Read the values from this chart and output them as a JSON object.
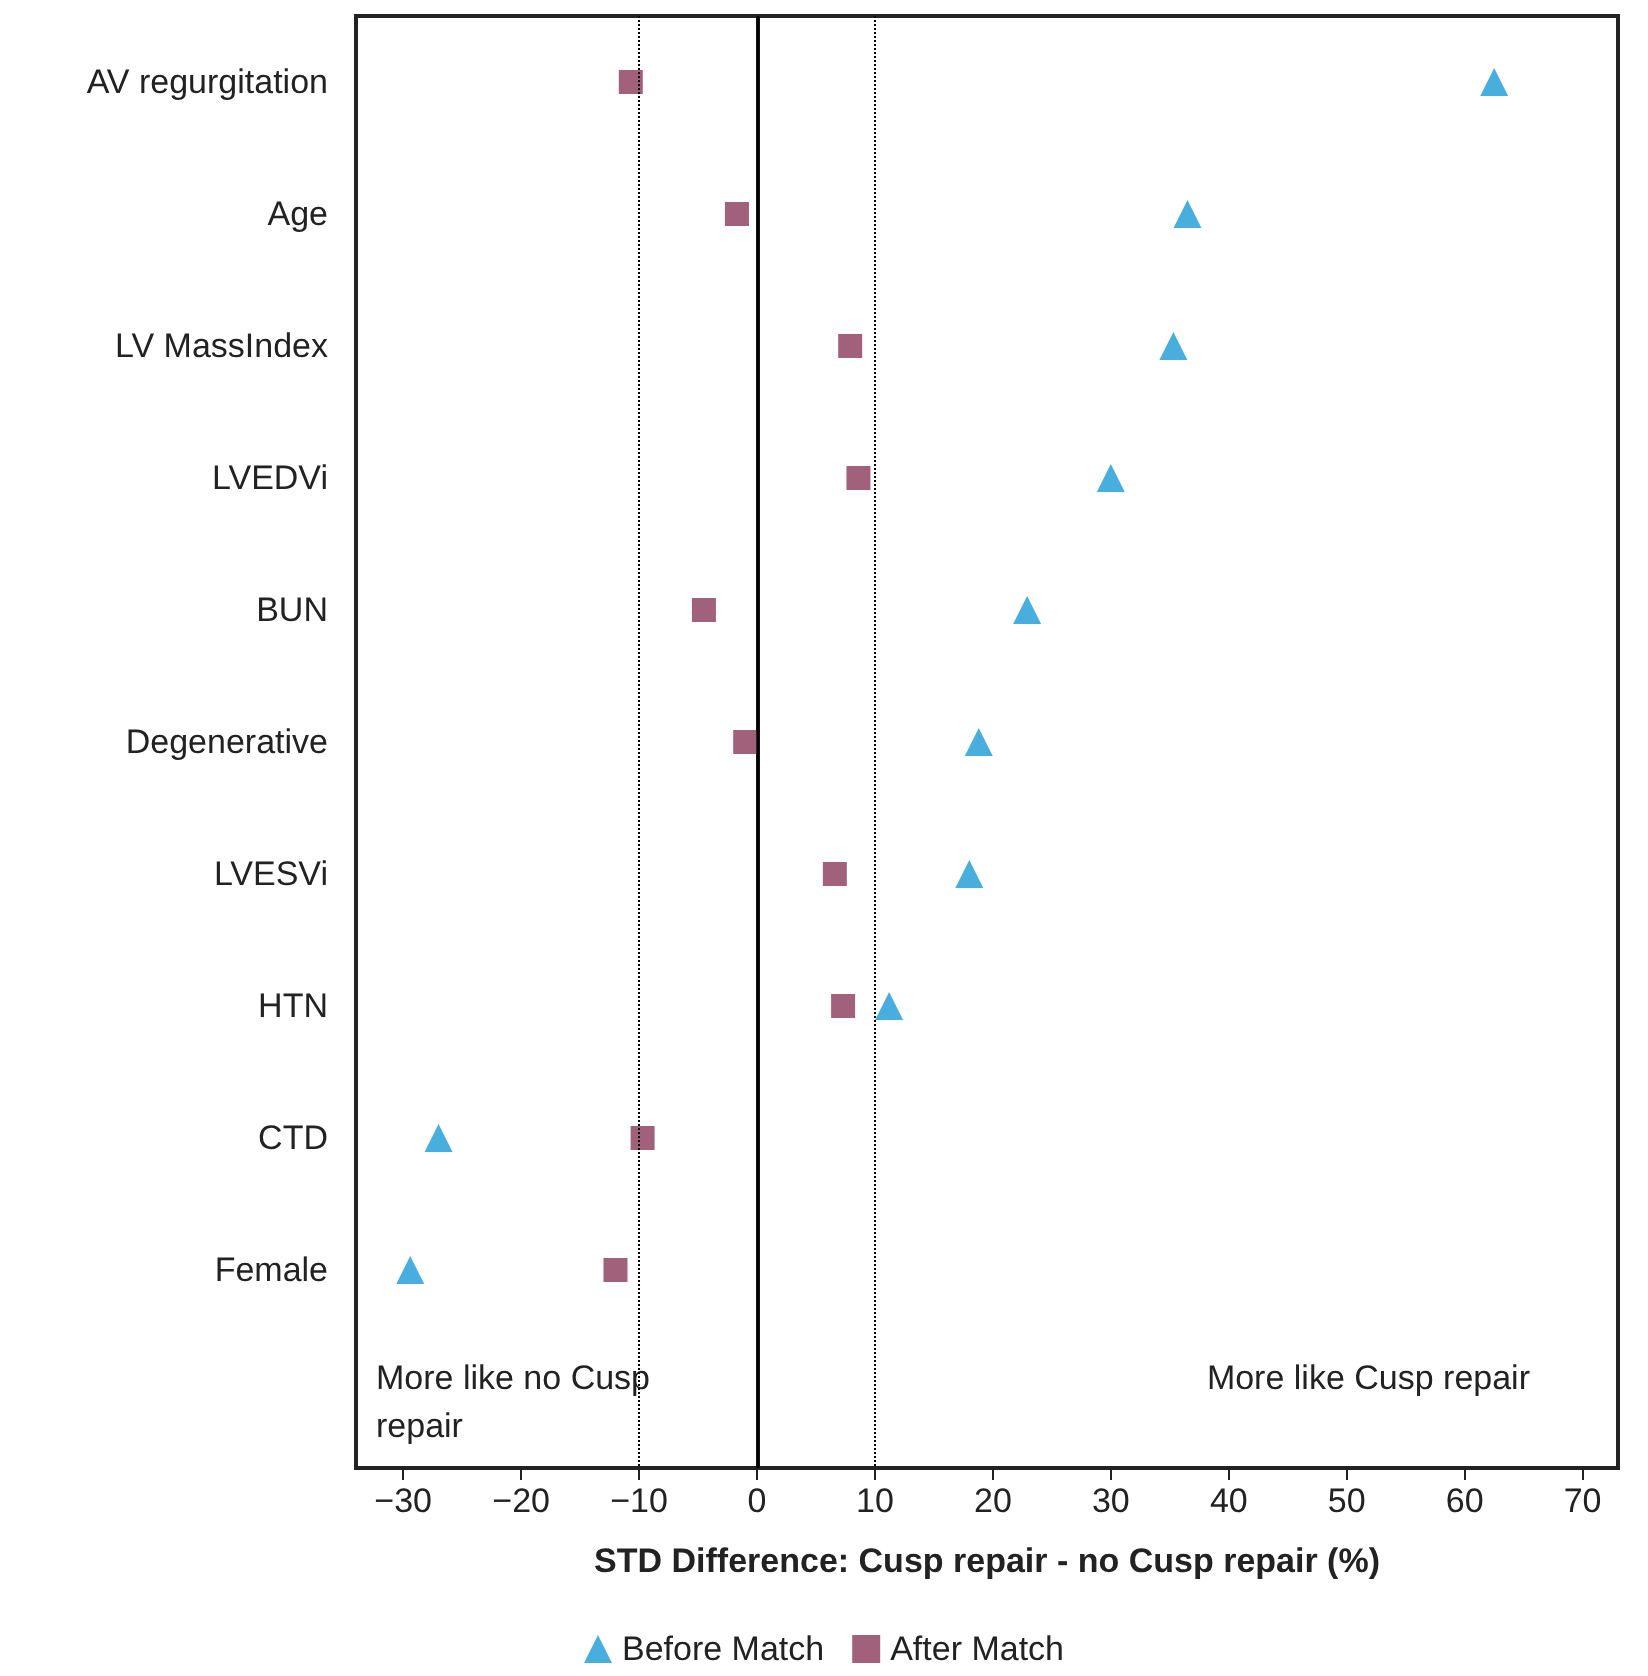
{
  "chart_data": {
    "type": "scatter",
    "xlabel": "STD Difference: Cusp repair - no Cusp repair (%)",
    "categories": [
      "AV regurgitation",
      "Age",
      "LV MassIndex",
      "LVEDVi",
      "BUN",
      "Degenerative",
      "LVESVi",
      "HTN",
      "CTD",
      "Female",
      null
    ],
    "series": [
      {
        "name": "Before Match",
        "color": "#1a9ad6",
        "marker": "triangle",
        "values": [
          62.5,
          36.5,
          35.3,
          30,
          22.9,
          18.8,
          18,
          11.2,
          -27,
          -29.4,
          null
        ]
      },
      {
        "name": "After Match",
        "color": "#8b3a5a",
        "marker": "square",
        "values": [
          -10.7,
          -1.7,
          7.9,
          8.6,
          -4.5,
          -1,
          6.6,
          7.3,
          -9.7,
          -12,
          null
        ]
      }
    ],
    "orientation": "horizontal",
    "xlim": [
      -34,
      73
    ],
    "xticks": [
      {
        "value": -30,
        "label": "−30"
      },
      {
        "value": -20,
        "label": "−20"
      },
      {
        "value": -10,
        "label": "−10"
      },
      0,
      10,
      20,
      30,
      40,
      50,
      60,
      70
    ],
    "ref_lines": [
      {
        "axis": "x",
        "value": -10,
        "line_style": "dotted",
        "color": "#000000"
      },
      {
        "axis": "x",
        "value": 0,
        "line_style": "solid",
        "color": "#000000"
      },
      {
        "axis": "x",
        "value": 10,
        "line_style": "dotted",
        "color": "#000000"
      }
    ],
    "annotations": [
      "More like no Cusp\nrepair",
      "More like Cusp repair"
    ],
    "grid": false,
    "legend": "bottom"
  }
}
